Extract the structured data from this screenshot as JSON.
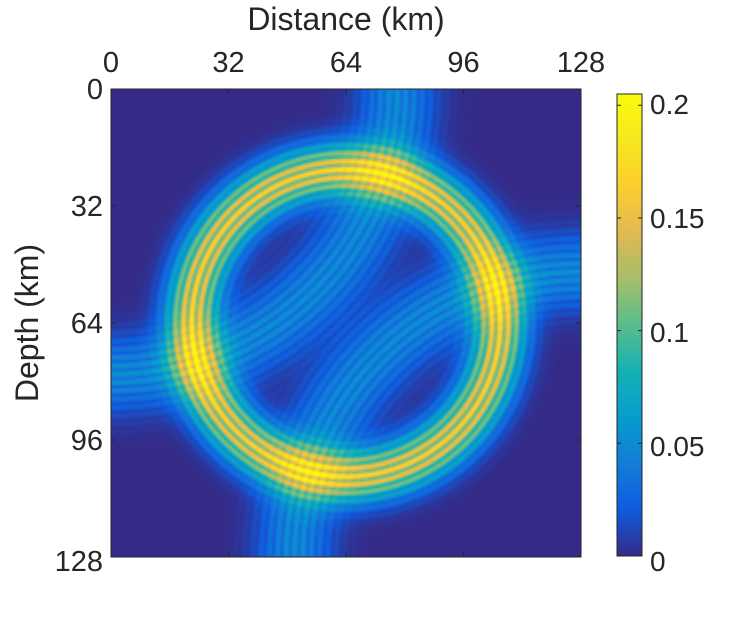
{
  "chart_data": {
    "type": "heatmap",
    "title": "",
    "xlabel": "Distance (km)",
    "ylabel": "Depth (km)",
    "xlim": [
      0,
      128
    ],
    "ylim": [
      0,
      128
    ],
    "x_axis_position": "top",
    "y_axis_direction": "reversed",
    "x_ticks": [
      0,
      32,
      64,
      96,
      128
    ],
    "x_tick_labels": [
      "0",
      "32",
      "64",
      "96",
      "128"
    ],
    "y_ticks": [
      0,
      32,
      64,
      96,
      128
    ],
    "y_tick_labels": [
      "0",
      "32",
      "64",
      "96",
      "128"
    ],
    "colorbar": {
      "colormap": "parula",
      "range": [
        0,
        0.205
      ],
      "ticks": [
        0,
        0.05,
        0.1,
        0.15,
        0.2
      ],
      "tick_labels": [
        "0",
        "0.05",
        "0.1",
        "0.15",
        "0.2"
      ]
    },
    "field": {
      "description": "circular wavefront ring",
      "center": [
        64,
        64
      ],
      "ring_radius_km": 42,
      "ring_halfwidth_km": 8,
      "peak_value": 0.17,
      "oscillation_period_km": 2.3,
      "corner_fringes": [
        "top-left",
        "bottom-right"
      ]
    },
    "grid": false
  }
}
